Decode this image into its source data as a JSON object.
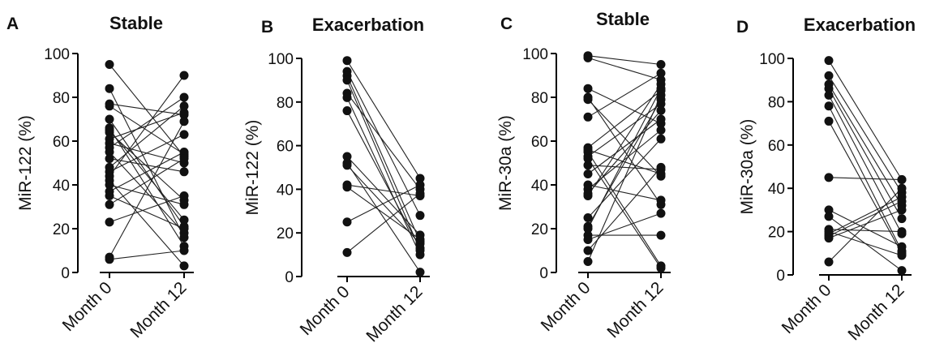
{
  "chart_data": [
    {
      "type": "scatter",
      "panel_label": "A",
      "title": "Stable",
      "ylabel": "MiR-122 (%)",
      "categories": [
        "Month 0",
        "Month 12"
      ],
      "ylim": [
        0,
        100
      ],
      "yticks": [
        0,
        20,
        40,
        60,
        80,
        100
      ],
      "pairs": [
        [
          95,
          53
        ],
        [
          84,
          16
        ],
        [
          77,
          72
        ],
        [
          76,
          54
        ],
        [
          70,
          21
        ],
        [
          66,
          12
        ],
        [
          64,
          33
        ],
        [
          61,
          73
        ],
        [
          59,
          50
        ],
        [
          57,
          80
        ],
        [
          55,
          18
        ],
        [
          48,
          76
        ],
        [
          46,
          63
        ],
        [
          44,
          90
        ],
        [
          42,
          3
        ],
        [
          40,
          31
        ],
        [
          37,
          55
        ],
        [
          35,
          20
        ],
        [
          31,
          52
        ],
        [
          23,
          35
        ],
        [
          7,
          69
        ],
        [
          6,
          10
        ],
        [
          65,
          24
        ],
        [
          52,
          46
        ]
      ]
    },
    {
      "type": "scatter",
      "panel_label": "B",
      "title": "Exacerbation",
      "ylabel": "MiR-122 (%)",
      "categories": [
        "Month 0",
        "Month 12"
      ],
      "ylim": [
        0,
        100
      ],
      "yticks": [
        0,
        20,
        40,
        60,
        80,
        100
      ],
      "pairs": [
        [
          99,
          45
        ],
        [
          94,
          28
        ],
        [
          92,
          16
        ],
        [
          90,
          12
        ],
        [
          84,
          40
        ],
        [
          82,
          10
        ],
        [
          76,
          13
        ],
        [
          55,
          19
        ],
        [
          52,
          2
        ],
        [
          51,
          15
        ],
        [
          42,
          37
        ],
        [
          41,
          17
        ],
        [
          25,
          42
        ],
        [
          11,
          38
        ]
      ]
    },
    {
      "type": "scatter",
      "panel_label": "C",
      "title": "Stable",
      "ylabel": "MiR-30a  (%)",
      "categories": [
        "Month 0",
        "Month 12"
      ],
      "ylim": [
        0,
        100
      ],
      "yticks": [
        0,
        20,
        40,
        60,
        80,
        100
      ],
      "pairs": [
        [
          99,
          95
        ],
        [
          98,
          88
        ],
        [
          84,
          68
        ],
        [
          79,
          44
        ],
        [
          71,
          91
        ],
        [
          57,
          83
        ],
        [
          55,
          3
        ],
        [
          53,
          77
        ],
        [
          49,
          47
        ],
        [
          45,
          70
        ],
        [
          40,
          33
        ],
        [
          38,
          65
        ],
        [
          35,
          86
        ],
        [
          25,
          61
        ],
        [
          21,
          79
        ],
        [
          17,
          17
        ],
        [
          15,
          27
        ],
        [
          10,
          48
        ],
        [
          5,
          81
        ],
        [
          52,
          2
        ],
        [
          56,
          45
        ],
        [
          80,
          31
        ],
        [
          20,
          84
        ],
        [
          36,
          74
        ]
      ]
    },
    {
      "type": "scatter",
      "panel_label": "D",
      "title": "Exacerbation",
      "ylabel": "MiR-30a  (%)",
      "categories": [
        "Month 0",
        "Month 12"
      ],
      "ylim": [
        0,
        100
      ],
      "yticks": [
        0,
        20,
        40,
        60,
        80,
        100
      ],
      "pairs": [
        [
          99,
          44
        ],
        [
          92,
          38
        ],
        [
          88,
          32
        ],
        [
          86,
          26
        ],
        [
          83,
          19
        ],
        [
          78,
          11
        ],
        [
          71,
          10
        ],
        [
          45,
          44
        ],
        [
          30,
          13
        ],
        [
          27,
          2
        ],
        [
          21,
          20
        ],
        [
          19,
          36
        ],
        [
          18,
          34
        ],
        [
          17,
          30
        ],
        [
          6,
          40
        ],
        [
          20,
          9
        ]
      ]
    }
  ]
}
